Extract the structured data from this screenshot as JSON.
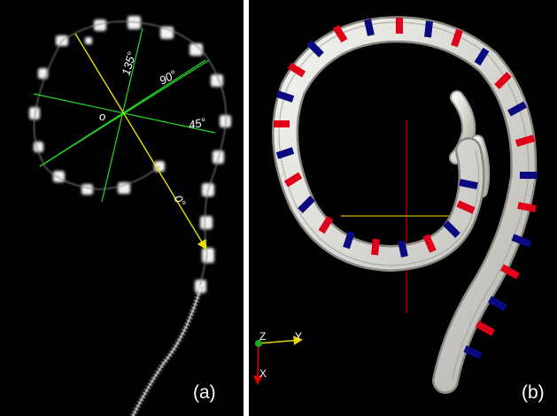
{
  "panels": {
    "a": {
      "label": "(a)",
      "origin_label": "o",
      "angle_labels": {
        "deg0": "0°",
        "deg45": "45°",
        "deg90": "90°",
        "deg135": "135°"
      }
    },
    "b": {
      "label": "(b)",
      "triad": {
        "z": "Z",
        "y": "Y",
        "x": "X"
      }
    }
  },
  "colors": {
    "background": "#000000",
    "divider": "#ffffff",
    "green_lines": "#22dd22",
    "yellow_arrow": "#e8e000",
    "tube": "#d8d6d0",
    "band_red": "#e0001a",
    "band_blue": "#0a0a80",
    "crosshair_red": "#c00000",
    "crosshair_yellow": "#c8b400"
  }
}
